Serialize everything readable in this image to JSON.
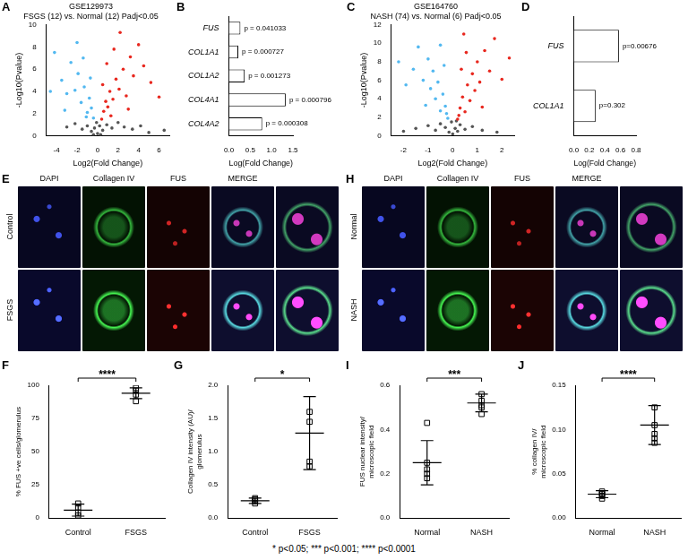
{
  "chart_data": [
    {
      "panel": "A",
      "type": "scatter",
      "title": [
        "GSE129973",
        "FSGS (12) vs. Normal (12) Padj<0.05"
      ],
      "xlabel": "Log2(Fold Change)",
      "ylabel": "-Log10(Pvalue)",
      "xlim": [
        -5,
        7
      ],
      "xticks": [
        -4,
        -2,
        0,
        2,
        4,
        6
      ],
      "ylim": [
        0,
        10
      ],
      "yticks": [
        0,
        2,
        4,
        6,
        8,
        10
      ],
      "grid": false,
      "series": [
        {
          "color": "#e8271e",
          "marker": "circle",
          "x": [
            0.4,
            0.6,
            0.8,
            1.0,
            1.2,
            1.5,
            1.8,
            2.1,
            2.5,
            2.8,
            3.2,
            3.5,
            4.0,
            4.5,
            5.2,
            6.0,
            0.9,
            1.6,
            2.2,
            1.3,
            0.5,
            3.0
          ],
          "values": [
            1.5,
            2.2,
            3.1,
            2.6,
            4.0,
            3.3,
            5.1,
            4.2,
            6.0,
            3.6,
            7.1,
            5.4,
            8.2,
            6.3,
            4.8,
            3.5,
            6.5,
            7.8,
            9.3,
            1.8,
            4.6,
            2.4
          ]
        },
        {
          "color": "#52b8f0",
          "marker": "circle",
          "x": [
            -0.4,
            -0.6,
            -0.8,
            -1.0,
            -1.3,
            -1.6,
            -1.9,
            -2.2,
            -2.6,
            -3.0,
            -3.5,
            -4.2,
            -0.7,
            -1.4,
            -2.0,
            -1.1,
            -3.2,
            -4.6
          ],
          "values": [
            1.6,
            2.5,
            3.4,
            2.1,
            4.4,
            3.0,
            5.6,
            4.1,
            6.6,
            3.8,
            5.0,
            7.5,
            5.2,
            7.0,
            8.4,
            1.7,
            2.3,
            4.0
          ]
        },
        {
          "color": "#555555",
          "marker": "circle",
          "x": [
            -3.0,
            -2.2,
            -1.5,
            -1.0,
            -0.6,
            -0.3,
            0,
            0.2,
            0.5,
            0.9,
            1.4,
            2.0,
            2.6,
            3.4,
            4.2,
            -0.1,
            0.3,
            -0.4,
            6.5,
            5.0
          ],
          "values": [
            0.8,
            1.1,
            0.6,
            0.9,
            0.4,
            0.7,
            0.2,
            0.9,
            0.5,
            1.0,
            0.7,
            1.2,
            0.8,
            0.6,
            0.9,
            1.2,
            0.1,
            0.1,
            0.5,
            0.3
          ]
        }
      ]
    },
    {
      "panel": "B",
      "type": "bar",
      "orientation": "horizontal",
      "categories": [
        "FUS",
        "COL1A1",
        "COL1A2",
        "COL4A1",
        "COL4A2"
      ],
      "values": [
        0.27,
        0.22,
        0.37,
        1.33,
        0.78
      ],
      "annotations": [
        "p = 0.041033",
        "p = 0.000727",
        "p = 0.001273",
        "p = 0.000796",
        "p = 0.000308"
      ],
      "color": "#ffffff",
      "xlabel": "Log(Fold Change)",
      "xlim": [
        0,
        1.5
      ],
      "xticks": [
        {
          "value": 0,
          "label": "0.0"
        },
        {
          "value": 0.5,
          "label": "0.5"
        },
        {
          "value": 1.0,
          "label": "1.0"
        },
        {
          "value": 1.5,
          "label": "1.5"
        }
      ],
      "grid": false
    },
    {
      "panel": "C",
      "type": "scatter",
      "title": [
        "GSE164760",
        "NASH (74) vs. Normal (6) Padj<0.05"
      ],
      "xlabel": "Log2(Fold Change)",
      "ylabel": "-Log10(Pvalue)",
      "xlim": [
        -2.5,
        2.5
      ],
      "xticks": [
        -2,
        -1,
        0,
        1,
        2
      ],
      "ylim": [
        0,
        12
      ],
      "yticks": [
        0,
        2,
        4,
        6,
        8,
        10,
        12
      ],
      "grid": false,
      "series": [
        {
          "color": "#e8271e",
          "marker": "circle",
          "x": [
            0.2,
            0.3,
            0.4,
            0.5,
            0.6,
            0.7,
            0.8,
            0.9,
            1.0,
            1.1,
            1.3,
            1.5,
            1.7,
            2.0,
            2.3,
            0.35,
            0.55,
            0.25,
            1.2,
            0.45
          ],
          "values": [
            1.8,
            3.0,
            4.2,
            2.6,
            5.5,
            3.8,
            6.7,
            4.9,
            8.0,
            5.8,
            9.2,
            7.0,
            10.5,
            6.1,
            8.4,
            7.2,
            9.0,
            2.2,
            3.1,
            11.0
          ]
        },
        {
          "color": "#52b8f0",
          "marker": "circle",
          "x": [
            -0.2,
            -0.3,
            -0.4,
            -0.5,
            -0.6,
            -0.7,
            -0.8,
            -0.9,
            -1.0,
            -1.2,
            -1.4,
            -1.6,
            -1.9,
            -2.2,
            -0.35,
            -0.5,
            -0.25,
            -1.1
          ],
          "values": [
            1.9,
            3.2,
            4.5,
            2.7,
            5.8,
            4.0,
            7.0,
            5.1,
            8.3,
            6.0,
            9.6,
            7.2,
            5.5,
            8.0,
            7.6,
            9.8,
            2.4,
            3.3
          ]
        },
        {
          "color": "#555555",
          "marker": "circle",
          "x": [
            -1.5,
            -1.0,
            -0.7,
            -0.5,
            -0.3,
            -0.15,
            0,
            0.1,
            0.2,
            0.3,
            0.5,
            0.8,
            1.2,
            1.8,
            -0.05,
            0.15,
            -2.0
          ],
          "values": [
            0.8,
            1.1,
            0.6,
            1.3,
            0.9,
            0.4,
            0.2,
            0.8,
            0.5,
            1.2,
            0.7,
            1.0,
            0.6,
            0.4,
            1.5,
            1.6,
            0.5
          ]
        }
      ]
    },
    {
      "panel": "D",
      "type": "bar",
      "orientation": "horizontal",
      "categories": [
        "FUS",
        "COL1A1"
      ],
      "values": [
        0.58,
        0.28
      ],
      "annotations": [
        "p=0.00676",
        "p=0.302"
      ],
      "color": "#ffffff",
      "xlabel": "Log(Fold Change)",
      "xlim": [
        0,
        0.8
      ],
      "xticks": [
        {
          "value": 0,
          "label": "0.0"
        },
        {
          "value": 0.2,
          "label": "0.2"
        },
        {
          "value": 0.4,
          "label": "0.4"
        },
        {
          "value": 0.6,
          "label": "0.6"
        },
        {
          "value": 0.8,
          "label": "0.8"
        }
      ],
      "grid": false
    },
    {
      "panel": "F",
      "type": "dot",
      "marker": "square",
      "color": "#000000",
      "categories": [
        "Control",
        "FSGS"
      ],
      "values": [
        [
          2,
          4,
          8,
          11
        ],
        [
          88,
          93,
          96,
          98
        ]
      ],
      "means": [
        6,
        94
      ],
      "errors": [
        4.5,
        4
      ],
      "significance": "****",
      "ylabel": "% FUS +ve cells/glomerulus",
      "ylim": [
        0,
        100
      ],
      "yticks": [
        0,
        25,
        50,
        75,
        100
      ],
      "grid": false
    },
    {
      "panel": "G",
      "type": "dot",
      "marker": "square",
      "color": "#000000",
      "categories": [
        "Control",
        "FSGS"
      ],
      "values": [
        [
          0.22,
          0.25,
          0.28,
          0.3
        ],
        [
          0.78,
          0.85,
          1.45,
          1.6
        ]
      ],
      "means": [
        0.26,
        1.28
      ],
      "errors": [
        0.04,
        0.55
      ],
      "significance": "*",
      "ylabel": "Collagen IV intensity (AU)/ glomerulus",
      "ylim": [
        0,
        2.0
      ],
      "yticks": [
        {
          "value": 0,
          "label": "0.0"
        },
        {
          "value": 0.5,
          "label": "0.5"
        },
        {
          "value": 1.0,
          "label": "1.0"
        },
        {
          "value": 1.5,
          "label": "1.5"
        },
        {
          "value": 2.0,
          "label": "2.0"
        }
      ],
      "grid": false
    },
    {
      "panel": "I",
      "type": "dot",
      "marker": "square",
      "color": "#000000",
      "categories": [
        "Normal",
        "NASH"
      ],
      "values": [
        [
          0.18,
          0.2,
          0.22,
          0.25,
          0.43
        ],
        [
          0.47,
          0.5,
          0.51,
          0.53,
          0.56
        ]
      ],
      "means": [
        0.25,
        0.52
      ],
      "errors": [
        0.1,
        0.04
      ],
      "significance": "***",
      "ylabel": "FUS nuclear intensity/ microscopic field",
      "ylim": [
        0,
        0.6
      ],
      "yticks": [
        {
          "value": 0,
          "label": "0.0"
        },
        {
          "value": 0.2,
          "label": "0.2"
        },
        {
          "value": 0.4,
          "label": "0.4"
        },
        {
          "value": 0.6,
          "label": "0.6"
        }
      ],
      "grid": false
    },
    {
      "panel": "J",
      "type": "dot",
      "marker": "square",
      "color": "#000000",
      "categories": [
        "Normal",
        "NASH"
      ],
      "values": [
        [
          0.022,
          0.025,
          0.027,
          0.028,
          0.03
        ],
        [
          0.085,
          0.09,
          0.095,
          0.105,
          0.125
        ]
      ],
      "means": [
        0.027,
        0.105
      ],
      "errors": [
        0.004,
        0.022
      ],
      "significance": "****",
      "ylabel": "% collagen IV/ microscopic field",
      "ylim": [
        0,
        0.15
      ],
      "yticks": [
        {
          "value": 0,
          "label": "0.00"
        },
        {
          "value": 0.05,
          "label": "0.05"
        },
        {
          "value": 0.1,
          "label": "0.10"
        },
        {
          "value": 0.15,
          "label": "0.15"
        }
      ],
      "grid": false
    }
  ],
  "image_panels": [
    {
      "panel": "E",
      "columns": [
        "DAPI",
        "Collagen IV",
        "FUS",
        "MERGE"
      ],
      "rows": [
        "Control",
        "FSGS"
      ]
    },
    {
      "panel": "H",
      "columns": [
        "DAPI",
        "Collagen IV",
        "FUS",
        "MERGE"
      ],
      "rows": [
        "Normal",
        "NASH"
      ]
    }
  ],
  "footnote": "* p<0.05; *** p<0.001; **** p<0.0001"
}
